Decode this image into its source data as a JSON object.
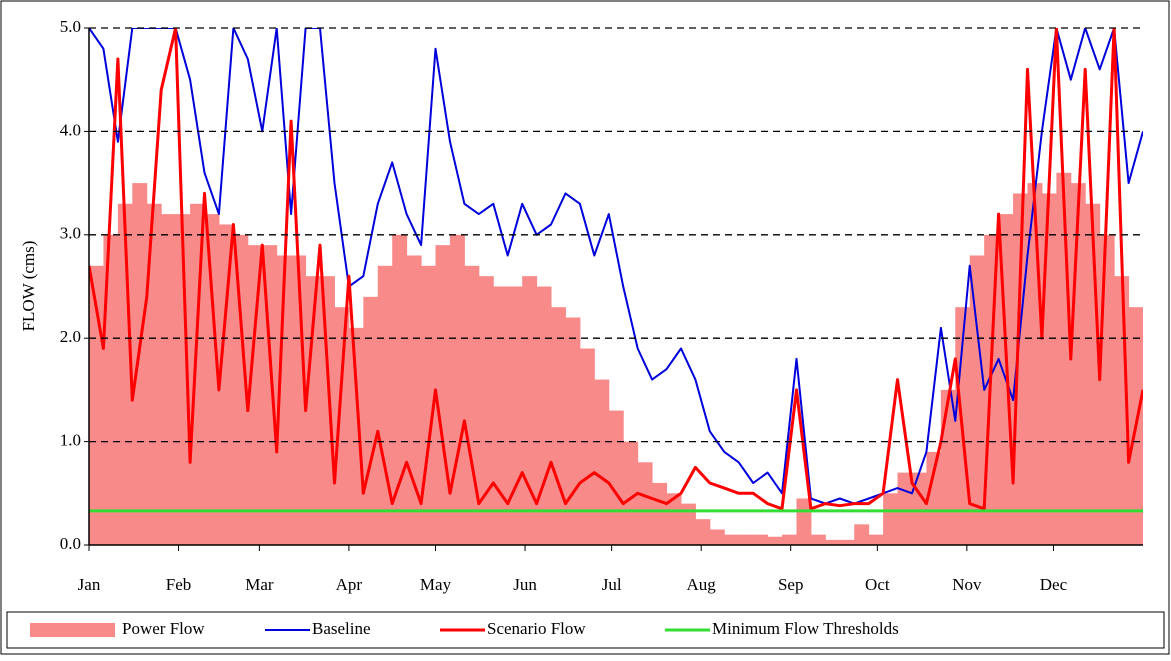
{
  "chart_data": {
    "type": "line",
    "y_label": "FLOW (cms)",
    "x": [
      0,
      5,
      10,
      15,
      20,
      25,
      30,
      35,
      40,
      45,
      50,
      55,
      60,
      65,
      70,
      75,
      80,
      85,
      90,
      95,
      100,
      105,
      110,
      115,
      120,
      125,
      130,
      135,
      140,
      145,
      150,
      155,
      160,
      165,
      170,
      175,
      180,
      185,
      190,
      195,
      200,
      205,
      210,
      215,
      220,
      225,
      230,
      235,
      240,
      245,
      250,
      255,
      260,
      265,
      270,
      275,
      280,
      285,
      290,
      295,
      300,
      305,
      310,
      315,
      320,
      325,
      330,
      335,
      340,
      345,
      350,
      355,
      360,
      365
    ],
    "xlim": [
      0,
      365
    ],
    "xticks": [
      {
        "value": 0,
        "label": "Jan"
      },
      {
        "value": 31,
        "label": "Feb"
      },
      {
        "value": 59,
        "label": "Mar"
      },
      {
        "value": 90,
        "label": "Apr"
      },
      {
        "value": 120,
        "label": "May"
      },
      {
        "value": 151,
        "label": "Jun"
      },
      {
        "value": 181,
        "label": "Jul"
      },
      {
        "value": 212,
        "label": "Aug"
      },
      {
        "value": 243,
        "label": "Sep"
      },
      {
        "value": 273,
        "label": "Oct"
      },
      {
        "value": 304,
        "label": "Nov"
      },
      {
        "value": 334,
        "label": "Dec"
      }
    ],
    "ylim": [
      0,
      5
    ],
    "yticks": [
      {
        "value": 0,
        "label": "0.0"
      },
      {
        "value": 1,
        "label": "1.0"
      },
      {
        "value": 2,
        "label": "2.0"
      },
      {
        "value": 3,
        "label": "3.0"
      },
      {
        "value": 4,
        "label": "4.0"
      },
      {
        "value": 5,
        "label": "5.0"
      }
    ],
    "grid": true,
    "legend": "bottom",
    "series": [
      {
        "name": "Power Flow",
        "type": "bar",
        "color": "#f98a8a",
        "values": [
          2.7,
          3.0,
          3.3,
          3.5,
          3.3,
          3.2,
          3.2,
          3.3,
          3.2,
          3.1,
          3.0,
          2.9,
          2.9,
          2.8,
          2.8,
          2.6,
          2.6,
          2.3,
          2.1,
          2.4,
          2.7,
          3.0,
          2.8,
          2.7,
          2.9,
          3.0,
          2.7,
          2.6,
          2.5,
          2.5,
          2.6,
          2.5,
          2.3,
          2.2,
          1.9,
          1.6,
          1.3,
          1.0,
          0.8,
          0.6,
          0.5,
          0.4,
          0.25,
          0.15,
          0.1,
          0.1,
          0.1,
          0.08,
          0.1,
          0.45,
          0.1,
          0.05,
          0.05,
          0.2,
          0.1,
          0.5,
          0.7,
          0.7,
          0.9,
          1.5,
          2.3,
          2.8,
          3.0,
          3.2,
          3.4,
          3.5,
          3.4,
          3.6,
          3.5,
          3.3,
          3.0,
          2.6,
          2.3,
          2.2
        ]
      },
      {
        "name": "Baseline",
        "type": "line",
        "color": "#0000dd",
        "values": [
          5.0,
          4.8,
          3.9,
          5.0,
          5.0,
          5.0,
          5.0,
          4.5,
          3.6,
          3.2,
          5.0,
          4.7,
          4.0,
          5.0,
          3.2,
          5.0,
          5.0,
          3.5,
          2.5,
          2.6,
          3.3,
          3.7,
          3.2,
          2.9,
          4.8,
          3.9,
          3.3,
          3.2,
          3.3,
          2.8,
          3.3,
          3.0,
          3.1,
          3.4,
          3.3,
          2.8,
          3.2,
          2.5,
          1.9,
          1.6,
          1.7,
          1.9,
          1.6,
          1.1,
          0.9,
          0.8,
          0.6,
          0.7,
          0.5,
          1.8,
          0.45,
          0.4,
          0.45,
          0.4,
          0.45,
          0.5,
          0.55,
          0.5,
          0.9,
          2.1,
          1.2,
          2.7,
          1.5,
          1.8,
          1.4,
          2.8,
          4.0,
          5.0,
          4.5,
          5.0,
          4.6,
          5.0,
          3.5,
          4.0
        ]
      },
      {
        "name": "Scenario Flow",
        "type": "line",
        "color": "#ff0000",
        "values": [
          2.7,
          1.9,
          4.7,
          1.4,
          2.4,
          4.4,
          5.0,
          0.8,
          3.4,
          1.5,
          3.1,
          1.3,
          2.9,
          0.9,
          4.1,
          1.3,
          2.9,
          0.6,
          2.6,
          0.5,
          1.1,
          0.4,
          0.8,
          0.4,
          1.5,
          0.5,
          1.2,
          0.4,
          0.6,
          0.4,
          0.7,
          0.4,
          0.8,
          0.4,
          0.6,
          0.7,
          0.6,
          0.4,
          0.5,
          0.45,
          0.4,
          0.5,
          0.75,
          0.6,
          0.55,
          0.5,
          0.5,
          0.4,
          0.35,
          1.5,
          0.35,
          0.4,
          0.38,
          0.4,
          0.4,
          0.5,
          1.6,
          0.6,
          0.4,
          1.0,
          1.8,
          0.4,
          0.35,
          3.2,
          0.6,
          4.6,
          2.0,
          5.0,
          1.8,
          4.6,
          1.6,
          5.0,
          0.8,
          1.5
        ]
      },
      {
        "name": "Minimum Flow Thresholds",
        "type": "line",
        "color": "#33dd33",
        "values": [
          0.33,
          0.33,
          0.33,
          0.33,
          0.33,
          0.33,
          0.33,
          0.33,
          0.33,
          0.33,
          0.33,
          0.33,
          0.33,
          0.33,
          0.33,
          0.33,
          0.33,
          0.33,
          0.33,
          0.33,
          0.33,
          0.33,
          0.33,
          0.33,
          0.33,
          0.33,
          0.33,
          0.33,
          0.33,
          0.33,
          0.33,
          0.33,
          0.33,
          0.33,
          0.33,
          0.33,
          0.33,
          0.33,
          0.33,
          0.33,
          0.33,
          0.33,
          0.33,
          0.33,
          0.33,
          0.33,
          0.33,
          0.33,
          0.33,
          0.33,
          0.33,
          0.33,
          0.33,
          0.33,
          0.33,
          0.33,
          0.33,
          0.33,
          0.33,
          0.33,
          0.33,
          0.33,
          0.33,
          0.33,
          0.33,
          0.33,
          0.33,
          0.33,
          0.33,
          0.33,
          0.33,
          0.33,
          0.33,
          0.33
        ]
      }
    ]
  }
}
